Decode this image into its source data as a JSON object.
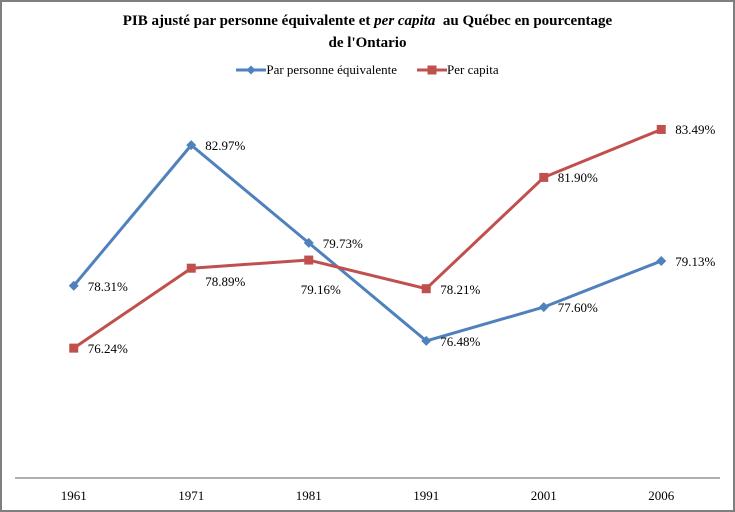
{
  "title": {
    "line1_prefix": "PIB ajusté par personne équivalente et ",
    "line1_italic": "per capita",
    "line1_suffix": "  au Québec en pourcentage",
    "line2": "de l'Ontario"
  },
  "colors": {
    "series1": "#4F81BD",
    "series2": "#C0504D",
    "axis": "#808080",
    "border": "#7f7f7f"
  },
  "chart_data": {
    "type": "line",
    "categories": [
      "1961",
      "1971",
      "1981",
      "1991",
      "2001",
      "2006"
    ],
    "series": [
      {
        "name": "Par personne équivalente",
        "color": "#4F81BD",
        "marker": "diamond",
        "values": [
          78.31,
          82.97,
          79.73,
          76.48,
          77.6,
          79.13
        ],
        "labels": [
          "78.31%",
          "82.97%",
          "79.73%",
          "76.48%",
          "77.60%",
          "79.13%"
        ],
        "label_offsets": [
          [
            14,
            1
          ],
          [
            14,
            1
          ],
          [
            14,
            1
          ],
          [
            14,
            1
          ],
          [
            14,
            1
          ],
          [
            14,
            1
          ]
        ]
      },
      {
        "name": "Per capita",
        "color": "#C0504D",
        "marker": "square",
        "values": [
          76.24,
          78.89,
          79.16,
          78.21,
          81.9,
          83.49
        ],
        "labels": [
          "76.24%",
          "78.89%",
          "79.16%",
          "78.21%",
          "81.90%",
          "83.49%"
        ],
        "label_offsets": [
          [
            14,
            1
          ],
          [
            14,
            14
          ],
          [
            -8,
            30
          ],
          [
            14,
            1
          ],
          [
            14,
            1
          ],
          [
            14,
            1
          ]
        ]
      }
    ],
    "title": "PIB ajusté par personne équivalente et per capita au Québec en pourcentage de l'Ontario",
    "xlabel": "",
    "ylabel": "",
    "ylim": [
      72,
      84.6
    ],
    "grid": false,
    "legend_position": "top",
    "y_axis_labels_visible": false,
    "data_labels_visible": true
  }
}
